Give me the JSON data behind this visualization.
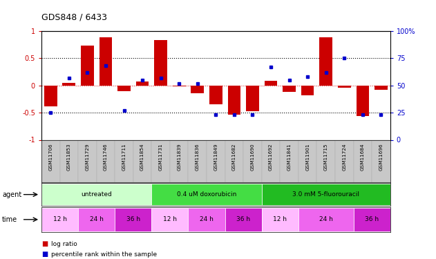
{
  "title": "GDS848 / 6433",
  "samples": [
    "GSM11706",
    "GSM11853",
    "GSM11729",
    "GSM11746",
    "GSM11711",
    "GSM11854",
    "GSM11731",
    "GSM11839",
    "GSM11836",
    "GSM11849",
    "GSM11682",
    "GSM11690",
    "GSM11692",
    "GSM11841",
    "GSM11901",
    "GSM11715",
    "GSM11724",
    "GSM11684",
    "GSM11696"
  ],
  "log_ratio": [
    -0.38,
    0.05,
    0.73,
    0.88,
    -0.1,
    0.07,
    0.83,
    -0.02,
    -0.14,
    -0.35,
    -0.54,
    -0.47,
    0.09,
    -0.12,
    -0.18,
    0.88,
    -0.04,
    -0.56,
    -0.08
  ],
  "percentile": [
    25,
    57,
    62,
    68,
    27,
    55,
    57,
    52,
    52,
    23,
    23,
    23,
    67,
    55,
    58,
    62,
    75,
    23,
    23
  ],
  "agents": [
    {
      "label": "untreated",
      "start": 0,
      "end": 6,
      "color": "#ccffcc"
    },
    {
      "label": "0.4 uM doxorubicin",
      "start": 6,
      "end": 12,
      "color": "#44dd44"
    },
    {
      "label": "3.0 mM 5-fluorouracil",
      "start": 12,
      "end": 19,
      "color": "#22bb22"
    }
  ],
  "times": [
    {
      "label": "12 h",
      "start": 0,
      "end": 2,
      "color": "#ffbbff"
    },
    {
      "label": "24 h",
      "start": 2,
      "end": 4,
      "color": "#ee66ee"
    },
    {
      "label": "36 h",
      "start": 4,
      "end": 6,
      "color": "#cc22cc"
    },
    {
      "label": "12 h",
      "start": 6,
      "end": 8,
      "color": "#ffbbff"
    },
    {
      "label": "24 h",
      "start": 8,
      "end": 10,
      "color": "#ee66ee"
    },
    {
      "label": "36 h",
      "start": 10,
      "end": 12,
      "color": "#cc22cc"
    },
    {
      "label": "12 h",
      "start": 12,
      "end": 14,
      "color": "#ffbbff"
    },
    {
      "label": "24 h",
      "start": 14,
      "end": 17,
      "color": "#ee66ee"
    },
    {
      "label": "36 h",
      "start": 17,
      "end": 19,
      "color": "#cc22cc"
    }
  ],
  "bar_color": "#cc0000",
  "dot_color": "#0000cc",
  "bg_color": "#ffffff",
  "ylim": [
    -1,
    1
  ],
  "right_ylim": [
    0,
    100
  ],
  "dotted_lines": [
    -0.5,
    0.5
  ],
  "left_ticks": [
    -1,
    -0.5,
    0,
    0.5,
    1
  ],
  "right_ticks": [
    0,
    25,
    50,
    75,
    100
  ],
  "label_fontsize": 6,
  "tick_fontsize": 7
}
